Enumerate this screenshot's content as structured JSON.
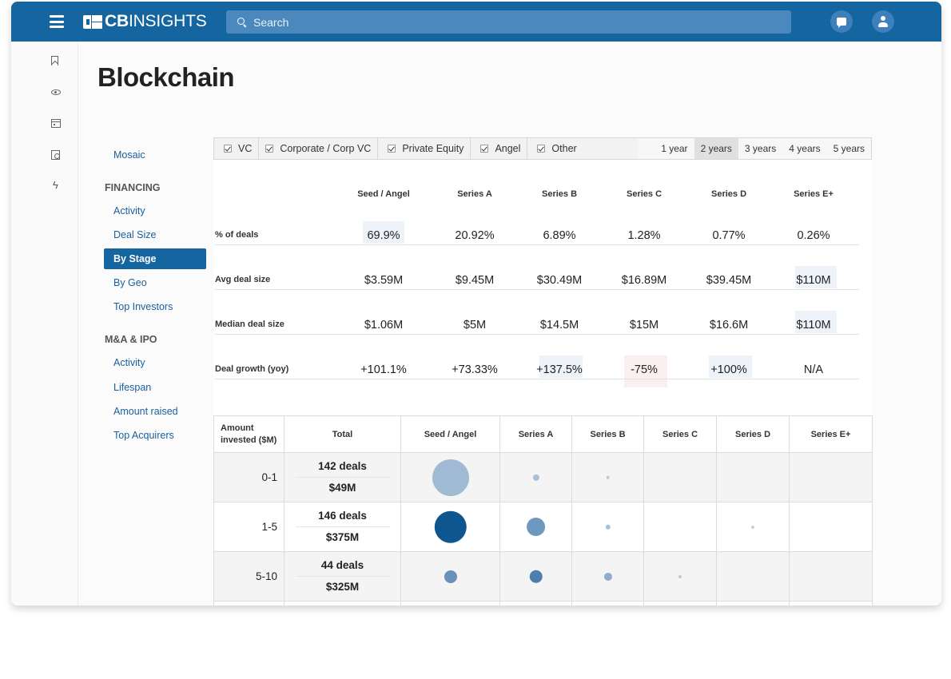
{
  "header": {
    "logo_bold": "CB",
    "logo_light": "INSIGHTS",
    "search_placeholder": "Search"
  },
  "page": {
    "title": "Blockchain"
  },
  "nav": {
    "top_item": "Mosaic",
    "financing_heading": "FINANCING",
    "financing_items": [
      "Activity",
      "Deal Size",
      "By Stage",
      "By Geo",
      "Top Investors"
    ],
    "active_item": "By Stage",
    "mna_heading": "M&A & IPO",
    "mna_items": [
      "Activity",
      "Lifespan",
      "Amount raised",
      "Top Acquirers"
    ]
  },
  "filters": {
    "investor_types": [
      {
        "label": "VC",
        "checked": true
      },
      {
        "label": "Corporate / Corp VC",
        "checked": true
      },
      {
        "label": "Private Equity",
        "checked": true
      },
      {
        "label": "Angel",
        "checked": true
      },
      {
        "label": "Other",
        "checked": true
      }
    ],
    "periods": [
      "1 year",
      "2 years",
      "3 years",
      "4 years",
      "5 years"
    ],
    "active_period": "2 years"
  },
  "stats": {
    "stages": [
      "Seed / Angel",
      "Series A",
      "Series B",
      "Series C",
      "Series D",
      "Series E+"
    ],
    "rows": [
      {
        "label": "% of deals",
        "values": [
          "69.9%",
          "20.92%",
          "6.89%",
          "1.28%",
          "0.77%",
          "0.26%"
        ]
      },
      {
        "label": "Avg deal size",
        "values": [
          "$3.59M",
          "$9.45M",
          "$30.49M",
          "$16.89M",
          "$39.45M",
          "$110M"
        ]
      },
      {
        "label": "Median deal size",
        "values": [
          "$1.06M",
          "$5M",
          "$14.5M",
          "$15M",
          "$16.6M",
          "$110M"
        ]
      },
      {
        "label": "Deal growth (yoy)",
        "values": [
          "+101.1%",
          "+73.33%",
          "+137.5%",
          "-75%",
          "+100%",
          "N/A"
        ]
      }
    ]
  },
  "bubble_table": {
    "headers": [
      "Amount invested ($M)",
      "Total",
      "Seed / Angel",
      "Series A",
      "Series B",
      "Series C",
      "Series D",
      "Series E+"
    ],
    "header_line1": "Amount",
    "header_line2": "invested ($M)",
    "rows": [
      {
        "range": "0-1",
        "deals": "142 deals",
        "amount": "$49M",
        "bubbles": [
          {
            "stage": 0,
            "size": 1.0,
            "color": "#9fbad2"
          },
          {
            "stage": 1,
            "size": 0.18,
            "color": "#a9c0d6"
          },
          {
            "stage": 2,
            "size": 0.1,
            "color": "#b7c9da"
          }
        ]
      },
      {
        "range": "1-5",
        "deals": "146 deals",
        "amount": "$375M",
        "bubbles": [
          {
            "stage": 0,
            "size": 0.88,
            "color": "#0f5590"
          },
          {
            "stage": 1,
            "size": 0.52,
            "color": "#6f98c0"
          },
          {
            "stage": 2,
            "size": 0.14,
            "color": "#a9c0d6"
          },
          {
            "stage": 4,
            "size": 0.09,
            "color": "#c2d1df"
          }
        ]
      },
      {
        "range": "5-10",
        "deals": "44 deals",
        "amount": "$325M",
        "bubbles": [
          {
            "stage": 0,
            "size": 0.35,
            "color": "#6991b9"
          },
          {
            "stage": 1,
            "size": 0.36,
            "color": "#4f7eac"
          },
          {
            "stage": 2,
            "size": 0.22,
            "color": "#8eadcb"
          },
          {
            "stage": 3,
            "size": 0.09,
            "color": "#b9c9d9"
          }
        ]
      }
    ]
  },
  "colors": {
    "brand": "#1565a0",
    "search_bg": "#4a88bd",
    "link": "#1a5f9e"
  }
}
